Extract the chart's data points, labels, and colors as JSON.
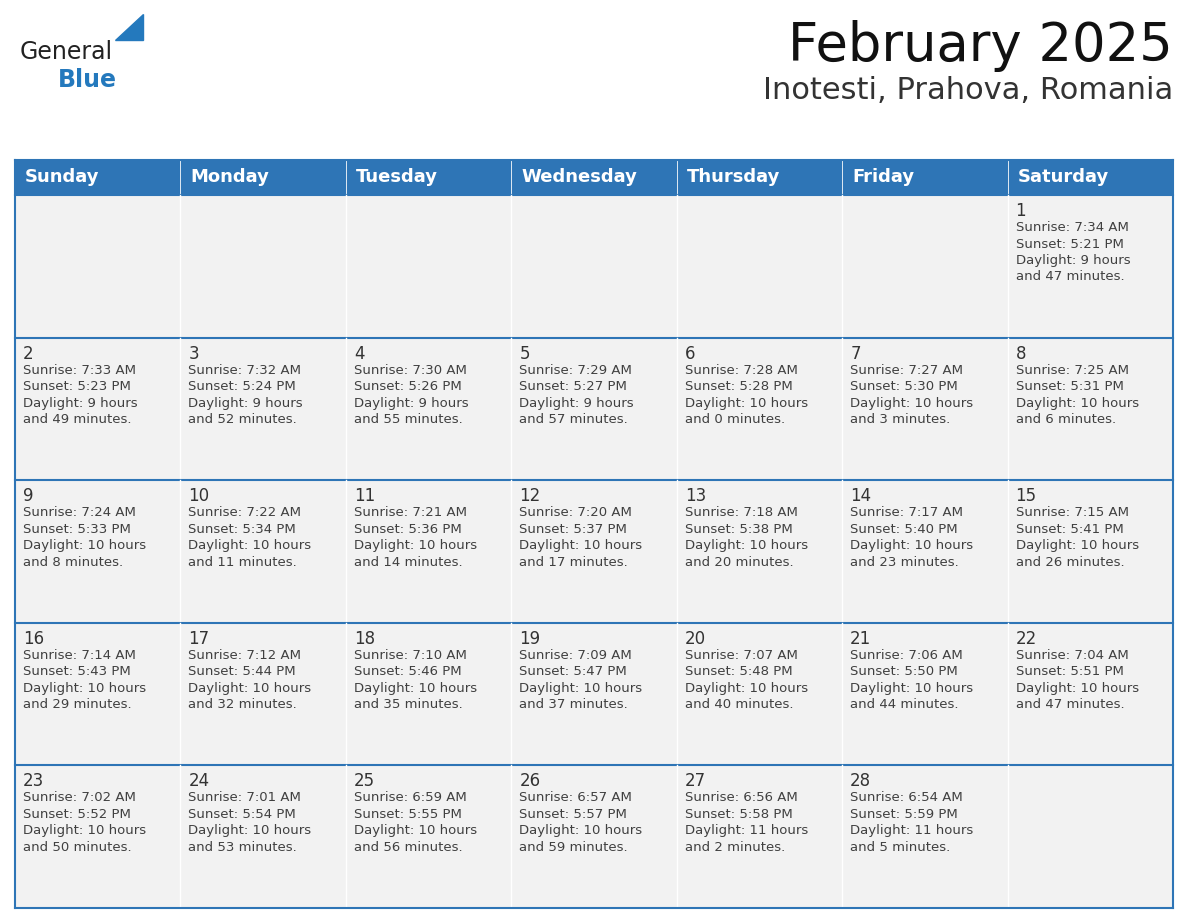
{
  "title": "February 2025",
  "subtitle": "Inotesti, Prahova, Romania",
  "header_color": "#2E75B6",
  "header_text_color": "#FFFFFF",
  "cell_bg_color": "#F2F2F2",
  "border_color": "#2E75B6",
  "day_number_color": "#333333",
  "cell_text_color": "#404040",
  "days_of_week": [
    "Sunday",
    "Monday",
    "Tuesday",
    "Wednesday",
    "Thursday",
    "Friday",
    "Saturday"
  ],
  "weeks": [
    [
      {
        "day": "",
        "info": ""
      },
      {
        "day": "",
        "info": ""
      },
      {
        "day": "",
        "info": ""
      },
      {
        "day": "",
        "info": ""
      },
      {
        "day": "",
        "info": ""
      },
      {
        "day": "",
        "info": ""
      },
      {
        "day": "1",
        "info": "Sunrise: 7:34 AM\nSunset: 5:21 PM\nDaylight: 9 hours\nand 47 minutes."
      }
    ],
    [
      {
        "day": "2",
        "info": "Sunrise: 7:33 AM\nSunset: 5:23 PM\nDaylight: 9 hours\nand 49 minutes."
      },
      {
        "day": "3",
        "info": "Sunrise: 7:32 AM\nSunset: 5:24 PM\nDaylight: 9 hours\nand 52 minutes."
      },
      {
        "day": "4",
        "info": "Sunrise: 7:30 AM\nSunset: 5:26 PM\nDaylight: 9 hours\nand 55 minutes."
      },
      {
        "day": "5",
        "info": "Sunrise: 7:29 AM\nSunset: 5:27 PM\nDaylight: 9 hours\nand 57 minutes."
      },
      {
        "day": "6",
        "info": "Sunrise: 7:28 AM\nSunset: 5:28 PM\nDaylight: 10 hours\nand 0 minutes."
      },
      {
        "day": "7",
        "info": "Sunrise: 7:27 AM\nSunset: 5:30 PM\nDaylight: 10 hours\nand 3 minutes."
      },
      {
        "day": "8",
        "info": "Sunrise: 7:25 AM\nSunset: 5:31 PM\nDaylight: 10 hours\nand 6 minutes."
      }
    ],
    [
      {
        "day": "9",
        "info": "Sunrise: 7:24 AM\nSunset: 5:33 PM\nDaylight: 10 hours\nand 8 minutes."
      },
      {
        "day": "10",
        "info": "Sunrise: 7:22 AM\nSunset: 5:34 PM\nDaylight: 10 hours\nand 11 minutes."
      },
      {
        "day": "11",
        "info": "Sunrise: 7:21 AM\nSunset: 5:36 PM\nDaylight: 10 hours\nand 14 minutes."
      },
      {
        "day": "12",
        "info": "Sunrise: 7:20 AM\nSunset: 5:37 PM\nDaylight: 10 hours\nand 17 minutes."
      },
      {
        "day": "13",
        "info": "Sunrise: 7:18 AM\nSunset: 5:38 PM\nDaylight: 10 hours\nand 20 minutes."
      },
      {
        "day": "14",
        "info": "Sunrise: 7:17 AM\nSunset: 5:40 PM\nDaylight: 10 hours\nand 23 minutes."
      },
      {
        "day": "15",
        "info": "Sunrise: 7:15 AM\nSunset: 5:41 PM\nDaylight: 10 hours\nand 26 minutes."
      }
    ],
    [
      {
        "day": "16",
        "info": "Sunrise: 7:14 AM\nSunset: 5:43 PM\nDaylight: 10 hours\nand 29 minutes."
      },
      {
        "day": "17",
        "info": "Sunrise: 7:12 AM\nSunset: 5:44 PM\nDaylight: 10 hours\nand 32 minutes."
      },
      {
        "day": "18",
        "info": "Sunrise: 7:10 AM\nSunset: 5:46 PM\nDaylight: 10 hours\nand 35 minutes."
      },
      {
        "day": "19",
        "info": "Sunrise: 7:09 AM\nSunset: 5:47 PM\nDaylight: 10 hours\nand 37 minutes."
      },
      {
        "day": "20",
        "info": "Sunrise: 7:07 AM\nSunset: 5:48 PM\nDaylight: 10 hours\nand 40 minutes."
      },
      {
        "day": "21",
        "info": "Sunrise: 7:06 AM\nSunset: 5:50 PM\nDaylight: 10 hours\nand 44 minutes."
      },
      {
        "day": "22",
        "info": "Sunrise: 7:04 AM\nSunset: 5:51 PM\nDaylight: 10 hours\nand 47 minutes."
      }
    ],
    [
      {
        "day": "23",
        "info": "Sunrise: 7:02 AM\nSunset: 5:52 PM\nDaylight: 10 hours\nand 50 minutes."
      },
      {
        "day": "24",
        "info": "Sunrise: 7:01 AM\nSunset: 5:54 PM\nDaylight: 10 hours\nand 53 minutes."
      },
      {
        "day": "25",
        "info": "Sunrise: 6:59 AM\nSunset: 5:55 PM\nDaylight: 10 hours\nand 56 minutes."
      },
      {
        "day": "26",
        "info": "Sunrise: 6:57 AM\nSunset: 5:57 PM\nDaylight: 10 hours\nand 59 minutes."
      },
      {
        "day": "27",
        "info": "Sunrise: 6:56 AM\nSunset: 5:58 PM\nDaylight: 11 hours\nand 2 minutes."
      },
      {
        "day": "28",
        "info": "Sunrise: 6:54 AM\nSunset: 5:59 PM\nDaylight: 11 hours\nand 5 minutes."
      },
      {
        "day": "",
        "info": ""
      }
    ]
  ],
  "logo_general_color": "#222222",
  "logo_blue_color": "#2479BD",
  "title_fontsize": 38,
  "subtitle_fontsize": 22,
  "header_fontsize": 13,
  "day_num_fontsize": 12,
  "cell_text_fontsize": 9.5
}
